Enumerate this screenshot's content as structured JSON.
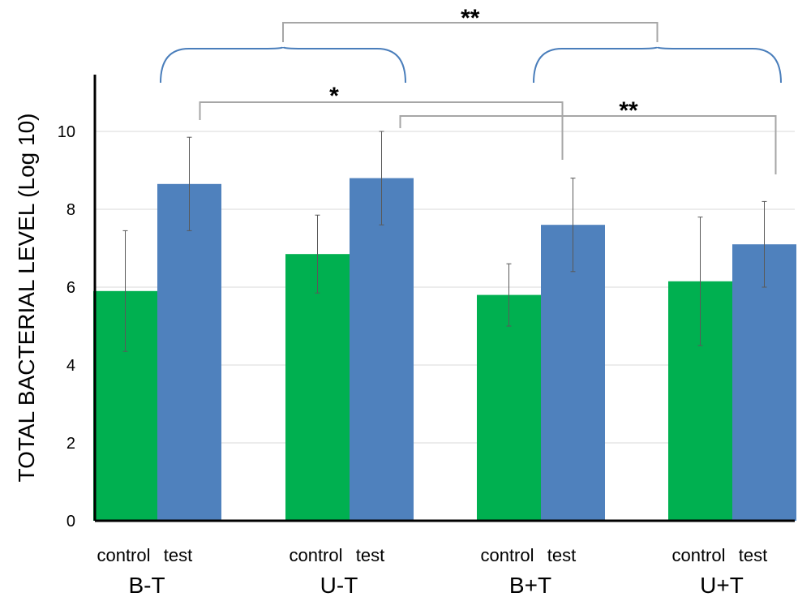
{
  "chart_data": {
    "type": "bar",
    "title": "",
    "xlabel": "",
    "ylabel": "TOTAL BACTERIAL LEVEL (Log 10)",
    "ylim": [
      0,
      11.5
    ],
    "yticks": [
      0,
      2,
      4,
      6,
      8,
      10
    ],
    "grid": true,
    "categories": [
      "B-T",
      "U-T",
      "B+T",
      "U+T"
    ],
    "bar_labels": [
      "control",
      "test"
    ],
    "series": [
      {
        "color": "#00B050",
        "values": [
          5.9,
          6.85,
          5.8,
          6.15
        ],
        "errors": [
          1.55,
          1.0,
          0.8,
          1.65
        ]
      },
      {
        "color": "#4F81BD",
        "values": [
          8.65,
          8.8,
          7.6,
          7.1
        ],
        "errors": [
          1.2,
          1.2,
          1.2,
          1.1
        ]
      }
    ],
    "annotations": {
      "bracket_colors": {
        "group": "#4A7EBB",
        "comparison": "#A6A6A6"
      },
      "top_group_brackets": [
        [
          "B-T",
          "U-T"
        ],
        [
          "B+T",
          "U+T"
        ]
      ],
      "top_comparison": {
        "groups": [
          "left-pair",
          "right-pair"
        ],
        "label": "**"
      },
      "pair_comparisons": [
        {
          "from": "B-T:test",
          "to": "B+T:test",
          "label": "*"
        },
        {
          "from": "U-T:test",
          "to": "U+T:test",
          "label": "**"
        }
      ]
    }
  }
}
